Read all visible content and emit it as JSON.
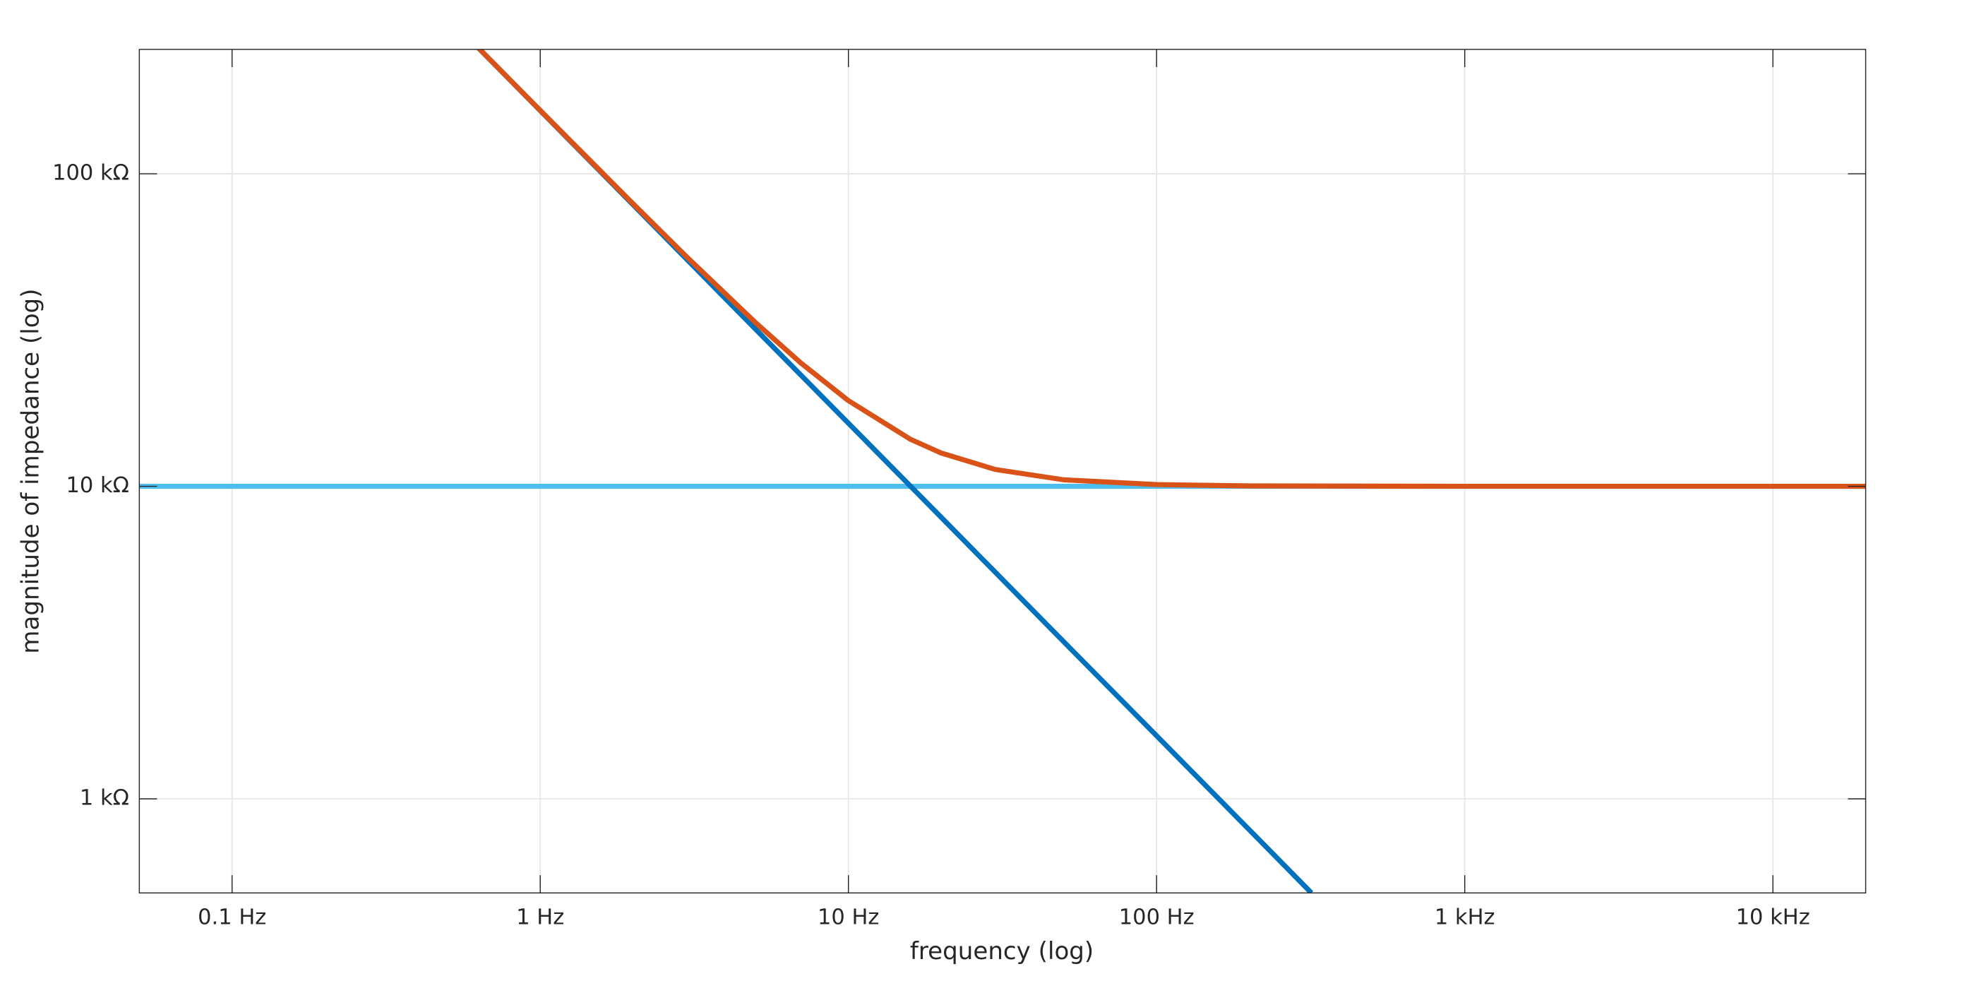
{
  "chart_data": {
    "type": "line",
    "xlabel": "frequency (log)",
    "ylabel": "magnitude of impedance (log)",
    "xscale": "log",
    "yscale": "log",
    "grid": true,
    "xlim": [
      0.05,
      20000
    ],
    "ylim": [
      500,
      250000
    ],
    "xticks": [
      {
        "value": 0.1,
        "label": "0.1 Hz"
      },
      {
        "value": 1,
        "label": "1 Hz"
      },
      {
        "value": 10,
        "label": "10 Hz"
      },
      {
        "value": 100,
        "label": "100 Hz"
      },
      {
        "value": 1000,
        "label": "1 kHz"
      },
      {
        "value": 10000,
        "label": "10 kHz"
      }
    ],
    "yticks": [
      {
        "value": 1000,
        "label": "1 kΩ"
      },
      {
        "value": 10000,
        "label": "10 kΩ"
      },
      {
        "value": 100000,
        "label": "100 kΩ"
      }
    ],
    "series": [
      {
        "color": "#4DBEEE",
        "x": [
          0.05,
          20000
        ],
        "values": [
          10000,
          10000
        ]
      },
      {
        "color": "#0072BD",
        "x": [
          0.63,
          1,
          2,
          5,
          10,
          20,
          50,
          100,
          200,
          318
        ],
        "values": [
          252600,
          159200,
          79600,
          31800,
          15920,
          7960,
          3180,
          1592,
          796,
          500
        ]
      },
      {
        "color": "#D95319",
        "x": [
          0.63,
          1,
          2,
          3,
          5,
          7,
          10,
          15.9,
          20,
          30,
          50,
          100,
          200,
          1000,
          20000
        ],
        "values": [
          252800,
          159500,
          80200,
          53990,
          33370,
          24840,
          18800,
          14140,
          12780,
          11320,
          10490,
          10130,
          10030,
          10000,
          10000
        ]
      }
    ]
  }
}
